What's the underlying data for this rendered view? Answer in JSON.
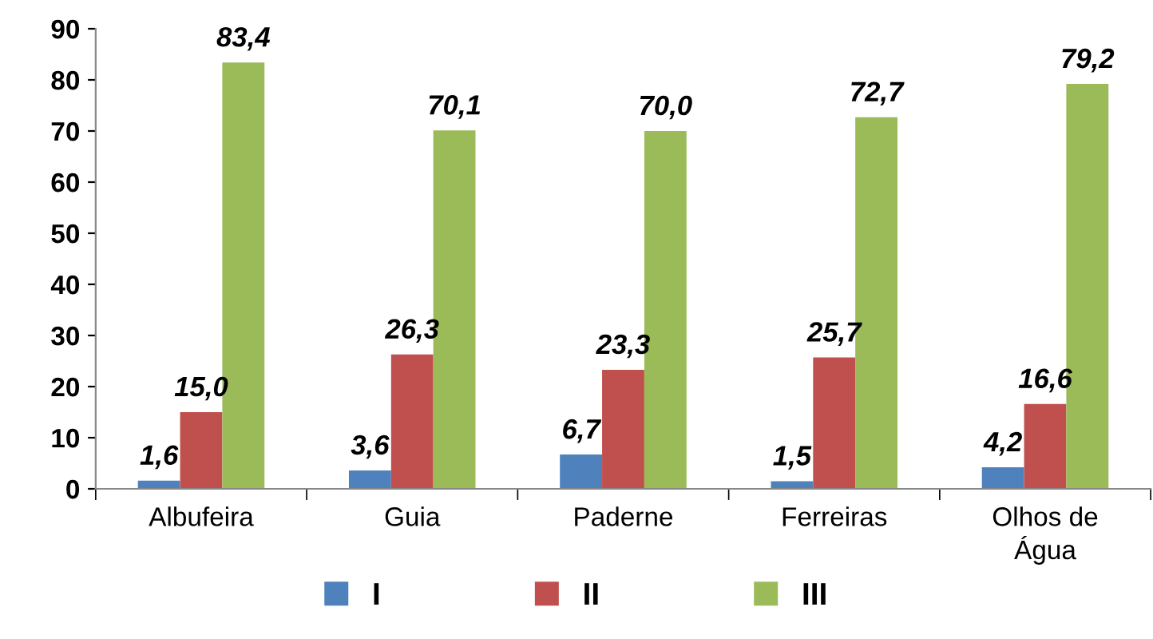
{
  "chart_data": {
    "type": "bar",
    "categories": [
      "Albufeira",
      "Guia",
      "Paderne",
      "Ferreiras",
      "Olhos de\nÁgua"
    ],
    "series": [
      {
        "name": "I",
        "color": "#4f81bd",
        "values": [
          1.6,
          3.6,
          6.7,
          1.5,
          4.2
        ],
        "value_labels": [
          "1,6",
          "3,6",
          "6,7",
          "1,5",
          "4,2"
        ]
      },
      {
        "name": "II",
        "color": "#c0504d",
        "values": [
          15.0,
          26.3,
          23.3,
          25.7,
          16.6
        ],
        "value_labels": [
          "15,0",
          "26,3",
          "23,3",
          "25,7",
          "16,6"
        ]
      },
      {
        "name": "III",
        "color": "#9bbb59",
        "values": [
          83.4,
          70.1,
          70.0,
          72.7,
          79.2
        ],
        "value_labels": [
          "83,4",
          "70,1",
          "70,0",
          "72,7",
          "79,2"
        ]
      }
    ],
    "ylim": [
      0,
      90
    ],
    "yticks": [
      0,
      10,
      20,
      30,
      40,
      50,
      60,
      70,
      80,
      90
    ],
    "grid": false,
    "legend": "bottom"
  }
}
